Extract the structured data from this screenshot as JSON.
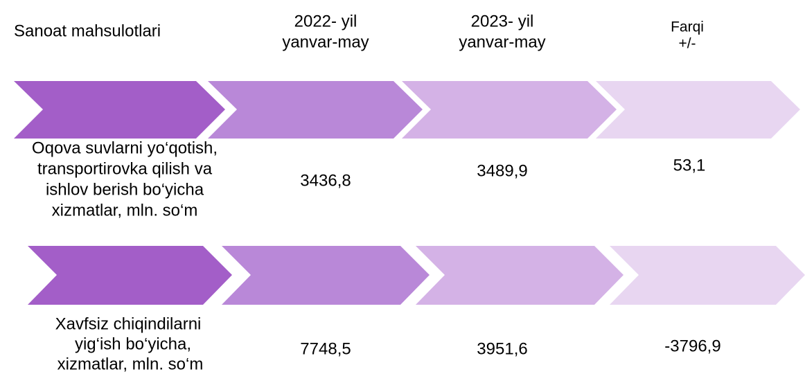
{
  "header": {
    "title": "Sanoat mahsulotlari",
    "columns": [
      [
        "2022- yil",
        "yanvar-may"
      ],
      [
        "2023- yil",
        "yanvar-may"
      ],
      [
        "Farqi",
        "+/-"
      ]
    ]
  },
  "rows": [
    {
      "label": [
        "Oqova suvlarni yo‘qotish,",
        "transportirovka qilish va",
        "ishlov berish bo‘yicha",
        "xizmatlar, mln. so‘m"
      ],
      "values": [
        "3436,8",
        "3489,9",
        "53,1"
      ]
    },
    {
      "label": [
        "Xavfsiz chiqindilarni",
        "yig‘ish bo‘yicha,",
        "xizmatlar, mln. so‘m"
      ],
      "values": [
        "7748,5",
        "3951,6",
        "-3796,9"
      ]
    }
  ]
}
